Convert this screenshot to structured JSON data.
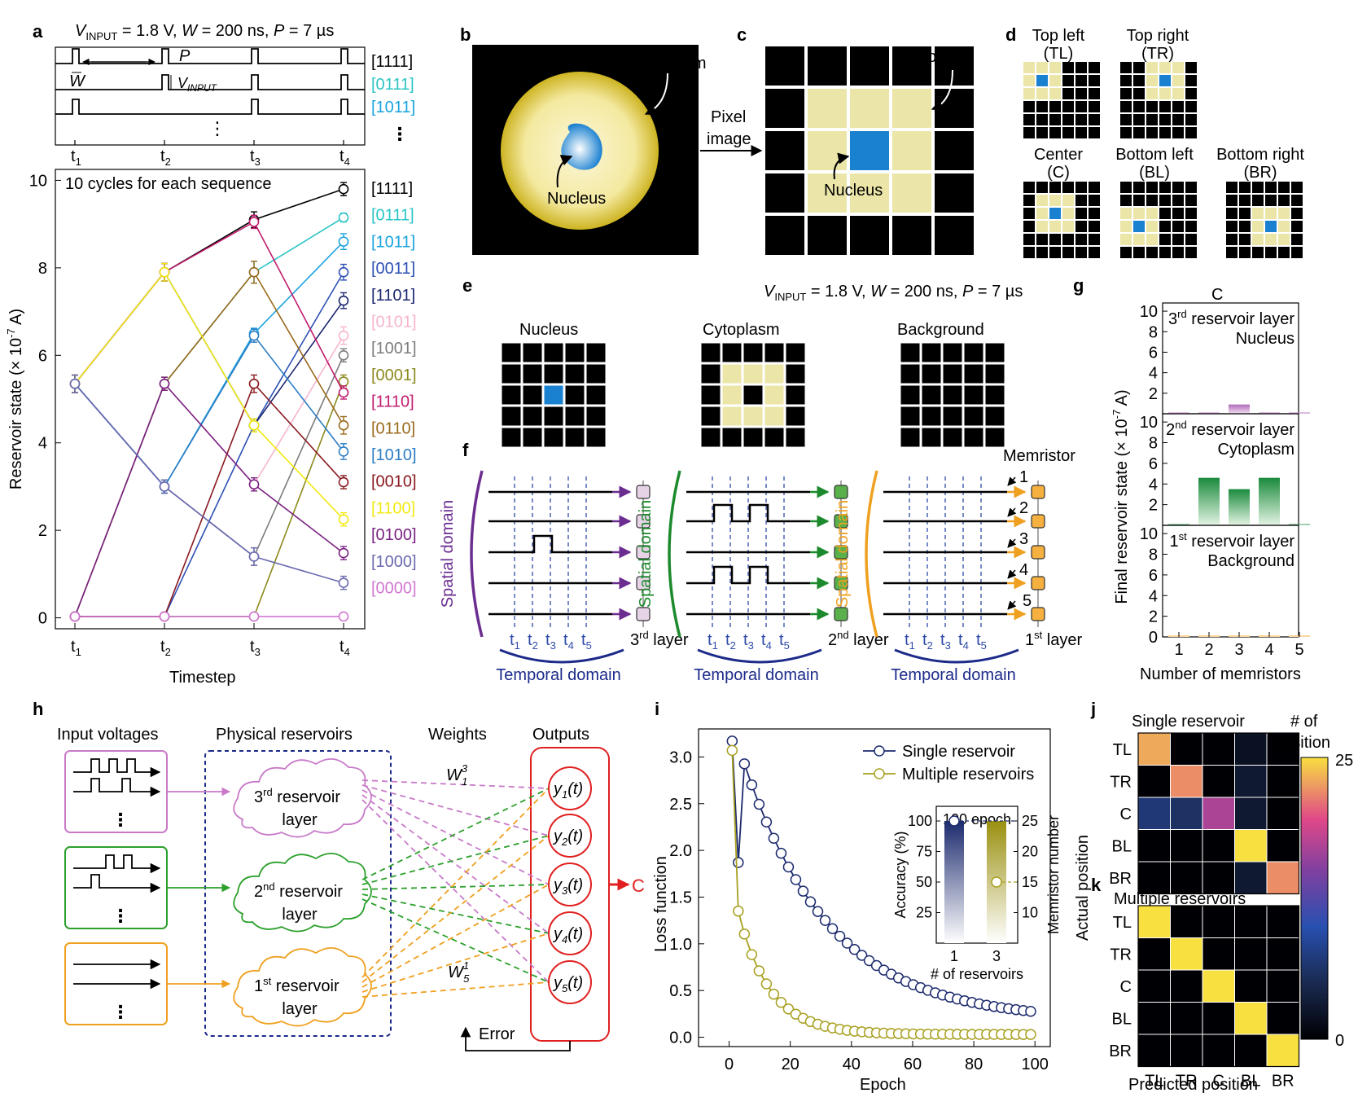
{
  "panel_labels": {
    "a": "a",
    "b": "b",
    "c": "c",
    "d": "d",
    "e": "e",
    "f": "f",
    "g": "g",
    "h": "h",
    "i": "i",
    "j": "j",
    "k": "k"
  },
  "pulse_params": {
    "v_label": "V",
    "v_sub": "INPUT",
    "rest": " = 1.8 V, ",
    "w_label": "W",
    "w_rest": " = 200 ns, ",
    "p_label": "P",
    "p_rest": " = 7 µs"
  },
  "panel_a": {
    "wave_rows": [
      {
        "label": "[1111]",
        "color": "#000000"
      },
      {
        "label": "[0111]",
        "color": "#2cc4c4"
      },
      {
        "label": "[1011]",
        "color": "#1aa3e0"
      }
    ],
    "wave_annotations": {
      "P": "P",
      "W": "W",
      "V": "V",
      "V_sub": "INPUT",
      "ellipsis": "⋮"
    },
    "time_ticks": [
      "t",
      "t",
      "t",
      "t"
    ],
    "time_subs": [
      "1",
      "2",
      "3",
      "4"
    ],
    "chart_data": {
      "type": "line",
      "title": "10 cycles for each sequence",
      "xlabel": "Timestep",
      "ylabel": "Reservoir state (× 10",
      "ylabel_sup": "-7",
      "ylabel_end": " A)",
      "x": [
        "t1",
        "t2",
        "t3",
        "t4"
      ],
      "ylim": [
        0,
        10
      ],
      "yticks": [
        "0",
        "2",
        "4",
        "6",
        "8",
        "10"
      ],
      "series": [
        {
          "name": "[1111]",
          "color": "#000000",
          "values": [
            5.35,
            7.9,
            9.1,
            9.8
          ],
          "err": [
            0.2,
            0.2,
            0.18,
            0.15
          ]
        },
        {
          "name": "[0111]",
          "color": "#2cc4c4",
          "values": [
            0.03,
            5.35,
            7.9,
            9.15
          ],
          "err": [
            0.05,
            0.15,
            0.25,
            0.1
          ]
        },
        {
          "name": "[1011]",
          "color": "#1aa3e0",
          "values": [
            5.35,
            3.0,
            6.5,
            8.6
          ],
          "err": [
            0.2,
            0.15,
            0.12,
            0.18
          ]
        },
        {
          "name": "[0011]",
          "color": "#2d50b4",
          "values": [
            0.03,
            0.03,
            4.4,
            7.9
          ],
          "err": [
            0.05,
            0.05,
            0.15,
            0.18
          ]
        },
        {
          "name": "[1101]",
          "color": "#1c2770",
          "values": [
            5.35,
            7.9,
            4.4,
            7.25
          ],
          "err": [
            0.2,
            0.2,
            0.15,
            0.18
          ]
        },
        {
          "name": "[0101]",
          "color": "#f7b5cf",
          "values": [
            0.03,
            5.35,
            3.05,
            6.45
          ],
          "err": [
            0.05,
            0.15,
            0.15,
            0.2
          ]
        },
        {
          "name": "[1001]",
          "color": "#7d7d7d",
          "values": [
            5.35,
            3.0,
            1.4,
            6.0
          ],
          "err": [
            0.2,
            0.15,
            0.2,
            0.15
          ]
        },
        {
          "name": "[0001]",
          "color": "#8c8a1e",
          "values": [
            0.03,
            0.03,
            0.03,
            5.4
          ],
          "err": [
            0.05,
            0.05,
            0.05,
            0.15
          ]
        },
        {
          "name": "[1110]",
          "color": "#c21d6e",
          "values": [
            5.35,
            7.9,
            9.05,
            5.15
          ],
          "err": [
            0.2,
            0.2,
            0.15,
            0.15
          ]
        },
        {
          "name": "[0110]",
          "color": "#9a6a1c",
          "values": [
            0.03,
            5.35,
            7.9,
            4.4
          ],
          "err": [
            0.05,
            0.15,
            0.25,
            0.2
          ]
        },
        {
          "name": "[1010]",
          "color": "#2c7dc4",
          "values": [
            5.35,
            3.0,
            6.45,
            3.8
          ],
          "err": [
            0.2,
            0.15,
            0.15,
            0.18
          ]
        },
        {
          "name": "[0010]",
          "color": "#8a1a20",
          "values": [
            0.03,
            0.03,
            5.35,
            3.1
          ],
          "err": [
            0.05,
            0.05,
            0.2,
            0.15
          ]
        },
        {
          "name": "[1100]",
          "color": "#f2ea14",
          "values": [
            5.35,
            7.9,
            4.4,
            2.25
          ],
          "err": [
            0.2,
            0.2,
            0.15,
            0.15
          ]
        },
        {
          "name": "[0100]",
          "color": "#7a2282",
          "values": [
            0.03,
            5.35,
            3.05,
            1.48
          ],
          "err": [
            0.05,
            0.15,
            0.15,
            0.15
          ]
        },
        {
          "name": "[1000]",
          "color": "#6a6ab0",
          "values": [
            5.35,
            3.0,
            1.4,
            0.8
          ],
          "err": [
            0.2,
            0.15,
            0.2,
            0.15
          ]
        },
        {
          "name": "[0000]",
          "color": "#d277d2",
          "values": [
            0.03,
            0.03,
            0.03,
            0.03
          ],
          "err": [
            0.05,
            0.05,
            0.05,
            0.05
          ]
        }
      ]
    }
  },
  "panel_b": {
    "cytoplasm": "Cytoplasm",
    "nucleus": "Nucleus"
  },
  "panel_c": {
    "arrow_line1": "Pixel",
    "arrow_line2": "image",
    "cytoplasm": "Cytoplasm",
    "nucleus": "Nucleus"
  },
  "panel_d": {
    "grids": [
      {
        "title1": "Top left",
        "title2": "(TL)",
        "nucleus": [
          1,
          1
        ]
      },
      {
        "title1": "Top right",
        "title2": "(TR)",
        "nucleus": [
          1,
          3
        ]
      },
      {
        "title1": "Center",
        "title2": "(C)",
        "nucleus": [
          2,
          2
        ]
      },
      {
        "title1": "Bottom left",
        "title2": "(BL)",
        "nucleus": [
          3,
          1
        ]
      },
      {
        "title1": "Bottom right",
        "title2": "(BR)",
        "nucleus": [
          3,
          3
        ]
      }
    ]
  },
  "panel_e": {
    "nucleus": "Nucleus",
    "cytoplasm": "Cytoplasm",
    "background": "Background"
  },
  "panel_f": {
    "spatial": "Spatial domain",
    "temporal": "Temporal domain",
    "memristor": "Memristor",
    "t_sym": "t",
    "t_subs": [
      "1",
      "2",
      "3",
      "4",
      "5"
    ],
    "mem_numbers": [
      "1",
      "2",
      "3",
      "4",
      "5"
    ],
    "layers": [
      {
        "ord": "3",
        "sup": "rd",
        "word": " layer",
        "color": "#6b2d90",
        "node": "#e6d3e6"
      },
      {
        "ord": "2",
        "sup": "nd",
        "word": " layer",
        "color": "#1c8a2c",
        "node": "#5ab04a"
      },
      {
        "ord": "1",
        "sup": "st",
        "word": " layer",
        "color": "#f0a020",
        "node": "#f5b040"
      }
    ]
  },
  "panel_g": {
    "title": "C",
    "ylabel": "Final reservoir state (× 10",
    "ylabel_sup": "-7",
    "ylabel_end": " A)",
    "xlabel": "Number of memristors",
    "chart_data": {
      "type": "bar",
      "categories": [
        "1",
        "2",
        "3",
        "4",
        "5"
      ],
      "ylim": [
        0,
        10
      ],
      "yticks": [
        "0",
        "2",
        "4",
        "6",
        "8",
        "10"
      ],
      "subplots": [
        {
          "ord": "3",
          "sup": "rd",
          "rest": " reservoir layer",
          "name": "Nucleus",
          "color": "#b06ab8",
          "values": [
            0,
            0,
            0.9,
            0,
            0
          ]
        },
        {
          "ord": "2",
          "sup": "nd",
          "rest": " reservoir layer",
          "name": "Cytoplasm",
          "color": "#1a8a3c",
          "values": [
            0,
            4.6,
            3.5,
            4.6,
            0
          ]
        },
        {
          "ord": "1",
          "sup": "st",
          "rest": " reservoir layer",
          "name": "Background",
          "color": "#f0a020",
          "values": [
            0.05,
            0.05,
            0.05,
            0.05,
            0.05
          ]
        }
      ]
    }
  },
  "panel_h": {
    "input_voltages": "Input voltages",
    "physical_reservoirs": "Physical reservoirs",
    "weights": "Weights",
    "outputs": "Outputs",
    "reservoirs": [
      {
        "ord": "3",
        "sup": "rd",
        "l1": " reservoir",
        "l2": "layer",
        "color": "#c87ac8"
      },
      {
        "ord": "2",
        "sup": "nd",
        "l1": " reservoir",
        "l2": "layer",
        "color": "#2ca02c"
      },
      {
        "ord": "1",
        "sup": "st",
        "l1": " reservoir",
        "l2": "layer",
        "color": "#f0a020"
      }
    ],
    "outputs_list": [
      "y",
      "y",
      "y",
      "y",
      "y"
    ],
    "output_subs": [
      "1",
      "2",
      "3",
      "4",
      "5"
    ],
    "output_arg": "(t)",
    "w_top": "W",
    "w_top_sup": "3",
    "w_top_sub": "1",
    "w_bot": "W",
    "w_bot_sup": "1",
    "w_bot_sub": "5",
    "error": "Error",
    "result": "C"
  },
  "panel_i": {
    "xlabel": "Epoch",
    "ylabel": "Loss function",
    "chart_data": {
      "type": "line",
      "xlim": [
        -10,
        105
      ],
      "ylim": [
        -0.1,
        3.3
      ],
      "xticks": [
        "0",
        "20",
        "40",
        "60",
        "80",
        "100"
      ],
      "yticks": [
        "0.0",
        "0.5",
        "1.0",
        "1.5",
        "2.0",
        "2.5",
        "3.0"
      ],
      "series": [
        {
          "name": "Single reservoir",
          "color": "#1c2a6e",
          "a": 2.95,
          "tau": 28,
          "c": 0.18,
          "kink": 1.87
        },
        {
          "name": "Multiple reservoirs",
          "color": "#a8a020",
          "a": 1.3,
          "tau": 10.5,
          "c": 0.03,
          "kink": 1.35
        }
      ],
      "inset": {
        "title": "100 epoch",
        "ylabel": "Accuracy (%)",
        "y2label": "Memristor number",
        "xlabel": "# of reservoirs",
        "categories": [
          "1",
          "3"
        ],
        "accuracy": [
          100,
          100
        ],
        "memristors": [
          25,
          15
        ],
        "yticks": [
          "25",
          "50",
          "75",
          "100"
        ],
        "y2ticks": [
          "10",
          "15",
          "20",
          "25"
        ]
      }
    }
  },
  "panel_j": {
    "title": "Single reservoir",
    "labels": [
      "TL",
      "TR",
      "C",
      "BL",
      "BR"
    ],
    "values": [
      [
        23,
        0,
        0,
        2,
        0
      ],
      [
        0,
        22,
        0,
        3,
        0
      ],
      [
        7,
        6,
        17,
        3,
        0
      ],
      [
        0,
        0,
        0,
        25,
        0
      ],
      [
        0,
        0,
        0,
        3,
        22
      ]
    ]
  },
  "panel_k": {
    "title": "Multiple reservoirs",
    "labels": [
      "TL",
      "TR",
      "C",
      "BL",
      "BR"
    ],
    "values": [
      [
        25,
        0,
        0,
        0,
        0
      ],
      [
        0,
        25,
        0,
        0,
        0
      ],
      [
        0,
        0,
        25,
        0,
        0
      ],
      [
        0,
        0,
        0,
        25,
        0
      ],
      [
        0,
        0,
        0,
        0,
        25
      ]
    ]
  },
  "panel_jk": {
    "ylabel": "Actual position",
    "xlabel": "Predicted position"
  },
  "colorbar": {
    "title1": "# of",
    "title2": "position",
    "max": "25",
    "min": "0"
  }
}
